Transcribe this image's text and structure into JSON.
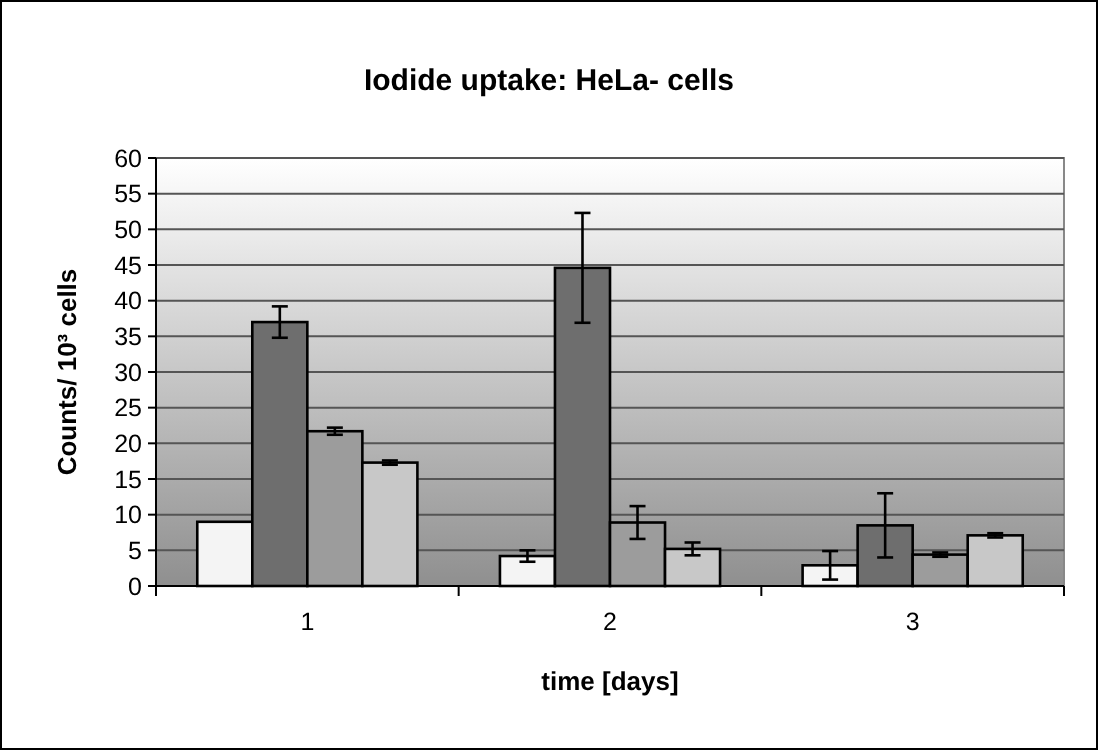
{
  "chart_data": {
    "type": "bar",
    "title": "Iodide uptake: HeLa- cells",
    "xlabel": "time [days]",
    "ylabel": "Counts/ 10³ cells",
    "categories": [
      "1",
      "2",
      "3"
    ],
    "series": [
      {
        "color": "#f4f4f4",
        "values": [
          9,
          4.2,
          2.9
        ],
        "errors": [
          null,
          0.8,
          2
        ]
      },
      {
        "color": "#6e6e6e",
        "values": [
          37,
          44.6,
          8.5
        ],
        "errors": [
          2.2,
          7.7,
          4.5
        ]
      },
      {
        "color": "#9c9c9c",
        "values": [
          21.7,
          8.9,
          4.4
        ],
        "errors": [
          0.5,
          2.3,
          0.3
        ]
      },
      {
        "color": "#c8c8c8",
        "values": [
          17.3,
          5.2,
          7.1
        ],
        "errors": [
          0.3,
          0.9,
          0.3
        ]
      }
    ],
    "ylim": [
      0,
      60
    ],
    "yticks": [
      0,
      5,
      10,
      15,
      20,
      25,
      30,
      35,
      40,
      45,
      50,
      55,
      60
    ],
    "grid": "y"
  }
}
